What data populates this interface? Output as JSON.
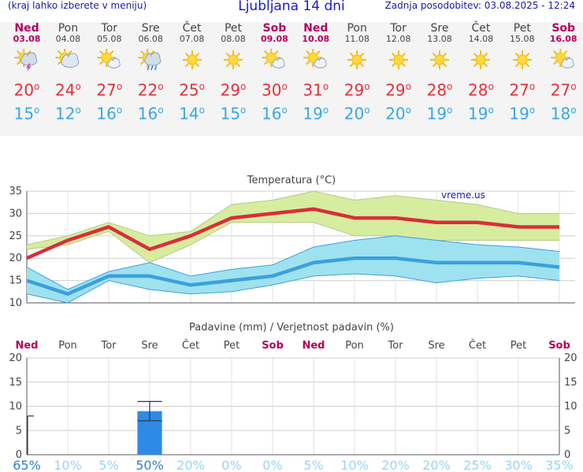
{
  "header": {
    "left_hint": "(kraj lahko izberete v meniju)",
    "title": "Ljubljana 14 dni",
    "updated": "Zadnja posodobitev: 03.08.2025 - 12:24"
  },
  "days": [
    {
      "name": "Ned",
      "date": "03.08",
      "weekend": true,
      "icon": "sun-cloud-thunder-icon",
      "tmax": "20",
      "tmin": "15"
    },
    {
      "name": "Pon",
      "date": "04.08",
      "weekend": false,
      "icon": "sun-cloud-icon",
      "tmax": "24",
      "tmin": "12"
    },
    {
      "name": "Tor",
      "date": "05.08",
      "weekend": false,
      "icon": "sun-small-cloud-icon",
      "tmax": "27",
      "tmin": "16"
    },
    {
      "name": "Sre",
      "date": "06.08",
      "weekend": false,
      "icon": "sun-cloud-rain-icon",
      "tmax": "22",
      "tmin": "16"
    },
    {
      "name": "Čet",
      "date": "07.08",
      "weekend": false,
      "icon": "sun-icon",
      "tmax": "25",
      "tmin": "14"
    },
    {
      "name": "Pet",
      "date": "08.08",
      "weekend": false,
      "icon": "sun-icon",
      "tmax": "29",
      "tmin": "15"
    },
    {
      "name": "Sob",
      "date": "09.08",
      "weekend": true,
      "icon": "sun-small-cloud-icon",
      "tmax": "30",
      "tmin": "16"
    },
    {
      "name": "Ned",
      "date": "10.08",
      "weekend": true,
      "icon": "sun-small-cloud-icon",
      "tmax": "31",
      "tmin": "19"
    },
    {
      "name": "Pon",
      "date": "11.08",
      "weekend": false,
      "icon": "sun-icon",
      "tmax": "29",
      "tmin": "20"
    },
    {
      "name": "Tor",
      "date": "12.08",
      "weekend": false,
      "icon": "sun-icon",
      "tmax": "29",
      "tmin": "20"
    },
    {
      "name": "Sre",
      "date": "13.08",
      "weekend": false,
      "icon": "sun-icon",
      "tmax": "28",
      "tmin": "19"
    },
    {
      "name": "Čet",
      "date": "14.08",
      "weekend": false,
      "icon": "sun-icon",
      "tmax": "28",
      "tmin": "19"
    },
    {
      "name": "Pet",
      "date": "15.08",
      "weekend": false,
      "icon": "sun-icon",
      "tmax": "27",
      "tmin": "19"
    },
    {
      "name": "Sob",
      "date": "16.08",
      "weekend": true,
      "icon": "sun-small-cloud-icon",
      "tmax": "27",
      "tmin": "18"
    }
  ],
  "chart_data": [
    {
      "type": "line",
      "title": "Temperatura (°C)",
      "watermark": "vreme.us",
      "categories": [
        "03.08",
        "04.08",
        "05.08",
        "06.08",
        "07.08",
        "08.08",
        "09.08",
        "10.08",
        "11.08",
        "12.08",
        "13.08",
        "14.08",
        "15.08",
        "16.08"
      ],
      "ylim": [
        10,
        35
      ],
      "yticks": [
        10,
        15,
        20,
        25,
        30,
        35
      ],
      "grid": true,
      "series": [
        {
          "role": "max",
          "values": [
            20,
            24,
            27,
            22,
            25,
            29,
            30,
            31,
            29,
            29,
            28,
            28,
            27,
            27
          ],
          "color": "#d62f3a",
          "band_low": [
            22,
            23,
            26,
            19,
            23,
            28,
            28,
            28,
            25,
            25,
            24,
            24,
            24,
            24
          ],
          "band_high": [
            23,
            25,
            28,
            25,
            26,
            32,
            33,
            35,
            33,
            34,
            33,
            32,
            30,
            30
          ],
          "band_color": "#d6ec9e"
        },
        {
          "role": "min",
          "values": [
            15,
            12,
            16,
            16,
            14,
            15,
            16,
            19,
            20,
            20,
            19,
            19,
            19,
            18
          ],
          "color": "#3aa0e0",
          "band_low": [
            12,
            10,
            15,
            13,
            12,
            12.5,
            14,
            16,
            16.5,
            16,
            14.5,
            15.5,
            16,
            15
          ],
          "band_high": [
            18,
            13,
            17,
            19,
            16,
            17.5,
            18.5,
            22.5,
            24,
            25,
            24,
            23,
            22.5,
            21.5
          ],
          "band_color": "#9fe2ef"
        }
      ]
    },
    {
      "type": "bar",
      "title": "Padavine (mm) / Verjetnost padavin (%)",
      "categories": [
        "Ned",
        "Pon",
        "Tor",
        "Sre",
        "Čet",
        "Pet",
        "Sob",
        "Ned",
        "Pon",
        "Tor",
        "Sre",
        "Čet",
        "Pet",
        "Sob"
      ],
      "weekend": [
        true,
        false,
        false,
        false,
        false,
        false,
        true,
        true,
        false,
        false,
        false,
        false,
        false,
        true
      ],
      "ylim": [
        0,
        20
      ],
      "yticks": [
        0,
        5,
        10,
        15,
        20
      ],
      "grid": true,
      "values": [
        0,
        0,
        0,
        9,
        0,
        0,
        0,
        0,
        0,
        0,
        0,
        0,
        0,
        0
      ],
      "error_range": [
        [
          0,
          8
        ],
        null,
        null,
        [
          7,
          11
        ],
        null,
        null,
        null,
        null,
        null,
        null,
        null,
        null,
        null,
        null
      ],
      "probability": [
        "65%",
        "10%",
        "5%",
        "50%",
        "20%",
        "0%",
        "0%",
        "5%",
        "10%",
        "20%",
        "20%",
        "25%",
        "30%",
        "35%"
      ],
      "probability_strong": [
        true,
        false,
        false,
        true,
        false,
        false,
        false,
        false,
        false,
        false,
        false,
        false,
        false,
        false
      ],
      "bar_color": "#2f8ae6"
    }
  ],
  "colors": {
    "weekend": "#b3005f",
    "max_temp": "#e0313d",
    "min_temp": "#3aa5e6",
    "prob_strong": "#2f7fd6",
    "prob_weak": "#9ad4f2"
  }
}
